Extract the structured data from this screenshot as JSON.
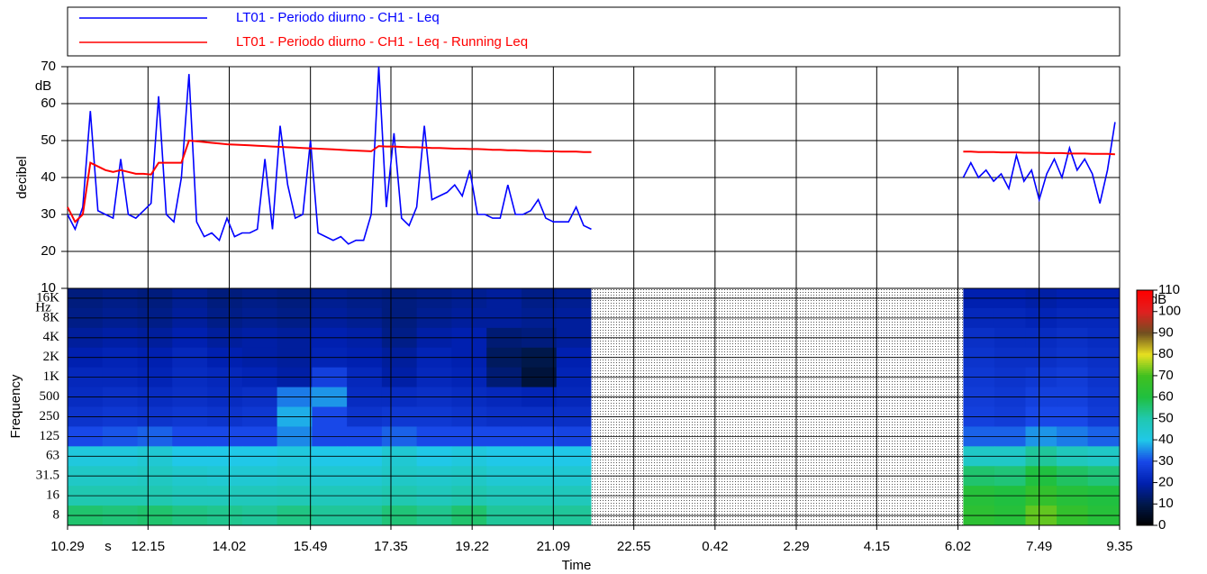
{
  "chart_data": [
    {
      "type": "line",
      "ylabel": "decibel",
      "y_unit": "dB",
      "xlim": [
        0,
        1386
      ],
      "ylim": [
        10,
        70
      ],
      "yticks": [
        10,
        20,
        30,
        40,
        50,
        60,
        70
      ],
      "grid": true,
      "x": [
        0,
        10,
        20,
        30,
        40,
        50,
        60,
        70,
        80,
        90,
        100,
        110,
        120,
        130,
        140,
        150,
        160,
        170,
        180,
        190,
        200,
        210,
        220,
        230,
        240,
        250,
        260,
        270,
        280,
        290,
        300,
        310,
        320,
        330,
        340,
        350,
        360,
        370,
        380,
        390,
        400,
        410,
        420,
        430,
        440,
        450,
        460,
        470,
        480,
        490,
        500,
        510,
        520,
        530,
        540,
        550,
        560,
        570,
        580,
        590,
        600,
        610,
        620,
        630,
        640,
        650,
        660,
        670,
        680,
        690,
        930,
        1180,
        1190,
        1200,
        1210,
        1220,
        1230,
        1240,
        1250,
        1260,
        1270,
        1280,
        1290,
        1300,
        1310,
        1320,
        1330,
        1340,
        1350,
        1360,
        1370,
        1380
      ],
      "series": [
        {
          "name": "LT01 - Periodo diurno - CH1 - Leq",
          "color": "#0000ff",
          "values": [
            30,
            26,
            32,
            58,
            31,
            30,
            29,
            45,
            30,
            29,
            31,
            33,
            62,
            30,
            28,
            40,
            68,
            28,
            24,
            25,
            23,
            29,
            24,
            25,
            25,
            26,
            45,
            26,
            54,
            38,
            29,
            30,
            50,
            25,
            24,
            23,
            24,
            22,
            23,
            23,
            30,
            70,
            32,
            52,
            29,
            27,
            32,
            54,
            34,
            35,
            36,
            38,
            35,
            42,
            30,
            30,
            29,
            29,
            38,
            30,
            30,
            31,
            34,
            29,
            28,
            28,
            28,
            32,
            27,
            26,
            null,
            40,
            44,
            40,
            42,
            39,
            41,
            37,
            46,
            39,
            42,
            34,
            41,
            45,
            40,
            48,
            42,
            45,
            41,
            33,
            42,
            55
          ]
        },
        {
          "name": "LT01 - Periodo diurno - CH1 - Leq - Running Leq",
          "color": "#ff0000",
          "values": [
            32,
            28,
            30,
            44,
            43,
            42,
            41.5,
            42,
            41.5,
            41,
            41,
            40.8,
            44,
            44,
            44,
            44,
            50,
            49.8,
            49.6,
            49.4,
            49.2,
            49,
            48.9,
            48.8,
            48.7,
            48.6,
            48.5,
            48.4,
            48.3,
            48.2,
            48.1,
            48,
            47.9,
            47.8,
            47.7,
            47.6,
            47.5,
            47.4,
            47.3,
            47.2,
            47.1,
            48.5,
            48.4,
            48.4,
            48.3,
            48.2,
            48.2,
            48.1,
            48,
            48,
            47.9,
            47.8,
            47.8,
            47.7,
            47.7,
            47.6,
            47.5,
            47.5,
            47.4,
            47.4,
            47.3,
            47.2,
            47.2,
            47.1,
            47.1,
            47,
            47,
            47,
            46.9,
            46.9,
            null,
            47,
            47,
            46.9,
            46.9,
            46.9,
            46.8,
            46.8,
            46.8,
            46.7,
            46.7,
            46.7,
            46.6,
            46.6,
            46.6,
            46.5,
            46.5,
            46.5,
            46.4,
            46.4,
            46.4,
            46.3
          ]
        }
      ]
    },
    {
      "type": "heatmap",
      "xlabel": "Time",
      "x_unit": "s",
      "ylabel": "Frequency",
      "y_unit": "Hz",
      "xlim": [
        0,
        1386
      ],
      "xticks": [
        {
          "value": 0,
          "label": "10.29"
        },
        {
          "value": 106,
          "label": "12.15"
        },
        {
          "value": 213,
          "label": "14.02"
        },
        {
          "value": 320,
          "label": "15.49"
        },
        {
          "value": 426,
          "label": "17.35"
        },
        {
          "value": 533,
          "label": "19.22"
        },
        {
          "value": 640,
          "label": "21.09"
        },
        {
          "value": 746,
          "label": "22.55"
        },
        {
          "value": 853,
          "label": "0.42"
        },
        {
          "value": 960,
          "label": "2.29"
        },
        {
          "value": 1066,
          "label": "4.15"
        },
        {
          "value": 1173,
          "label": "6.02"
        },
        {
          "value": 1280,
          "label": "7.49"
        },
        {
          "value": 1386,
          "label": "9.35"
        }
      ],
      "categories": [
        "16K",
        "8K",
        "4K",
        "2K",
        "1K",
        "500",
        "250",
        "125",
        "63",
        "31.5",
        "16",
        "8"
      ],
      "bins": [
        0,
        46,
        92,
        138,
        184,
        230,
        276,
        322,
        368,
        414,
        460,
        506,
        552,
        598,
        644,
        690,
        1180,
        1221,
        1262,
        1303,
        1344,
        1386
      ],
      "z": [
        [
          15,
          16,
          15,
          17,
          15,
          16,
          15,
          17,
          16,
          15,
          16,
          17,
          18,
          16,
          17,
          null,
          20,
          20,
          19,
          20,
          20
        ],
        [
          16,
          17,
          16,
          18,
          16,
          17,
          16,
          18,
          17,
          15,
          17,
          18,
          18,
          17,
          18,
          null,
          22,
          22,
          21,
          22,
          22
        ],
        [
          18,
          19,
          18,
          20,
          18,
          19,
          18,
          20,
          19,
          16,
          19,
          20,
          14,
          15,
          18,
          null,
          24,
          23,
          23,
          24,
          23
        ],
        [
          20,
          21,
          20,
          22,
          20,
          19,
          18,
          21,
          20,
          18,
          21,
          20,
          12,
          10,
          20,
          null,
          25,
          24,
          24,
          25,
          24
        ],
        [
          22,
          22,
          21,
          23,
          22,
          21,
          19,
          28,
          22,
          19,
          22,
          21,
          14,
          8,
          21,
          null,
          26,
          25,
          26,
          27,
          25
        ],
        [
          23,
          24,
          23,
          24,
          23,
          24,
          34,
          36,
          23,
          23,
          24,
          23,
          22,
          21,
          22,
          null,
          27,
          26,
          28,
          28,
          26
        ],
        [
          25,
          26,
          25,
          26,
          25,
          26,
          38,
          30,
          25,
          26,
          26,
          25,
          24,
          24,
          24,
          null,
          28,
          27,
          30,
          30,
          27
        ],
        [
          30,
          31,
          32,
          30,
          30,
          30,
          35,
          30,
          30,
          32,
          30,
          30,
          30,
          30,
          29,
          null,
          32,
          32,
          36,
          34,
          32
        ],
        [
          42,
          42,
          44,
          40,
          40,
          40,
          42,
          40,
          40,
          44,
          40,
          42,
          40,
          40,
          40,
          null,
          46,
          46,
          52,
          48,
          46
        ],
        [
          46,
          46,
          47,
          45,
          44,
          44,
          45,
          44,
          44,
          46,
          45,
          46,
          44,
          44,
          44,
          null,
          56,
          55,
          60,
          57,
          55
        ],
        [
          50,
          50,
          50,
          48,
          48,
          48,
          49,
          48,
          48,
          50,
          48,
          50,
          48,
          48,
          48,
          null,
          62,
          60,
          66,
          62,
          60
        ],
        [
          56,
          55,
          56,
          54,
          53,
          52,
          54,
          52,
          52,
          55,
          53,
          56,
          52,
          52,
          52,
          null,
          64,
          62,
          72,
          66,
          62
        ]
      ],
      "colorbar": {
        "unit": "dB",
        "lim": [
          0,
          110
        ],
        "ticks": [
          0,
          10,
          20,
          30,
          40,
          50,
          60,
          70,
          80,
          90,
          100,
          110
        ],
        "colors": [
          "#000000",
          "#00184a",
          "#0020b0",
          "#1848e8",
          "#20c8e8",
          "#20c8b0",
          "#20c040",
          "#40c020",
          "#e8e020",
          "#705020",
          "#e02020",
          "#ff0000"
        ]
      }
    }
  ]
}
